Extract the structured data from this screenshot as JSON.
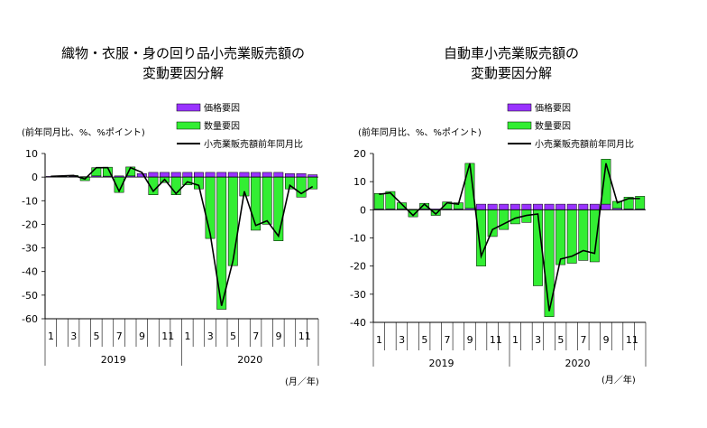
{
  "chart_data": [
    {
      "type": "bar",
      "title": "織物・衣服・身の回り品小売業販売額の",
      "subtitle": "変動要因分解",
      "ylabel": "(前年同月比、%、%ポイント)",
      "xlabel": "(月／年)",
      "ylim": [
        -60,
        10
      ],
      "yticks": [
        10,
        0,
        -10,
        -20,
        -30,
        -40,
        -50,
        -60
      ],
      "x_tick_labels": [
        "1",
        "",
        "3",
        "",
        "5",
        "",
        "7",
        "",
        "9",
        "",
        "11",
        "",
        "1",
        "",
        "3",
        "",
        "5",
        "",
        "7",
        "",
        "9",
        "",
        "11",
        ""
      ],
      "years": [
        "2019",
        "2020"
      ],
      "legend": {
        "price": "価格要因",
        "quantity": "数量要因",
        "line": "小売業販売額前年同月比"
      },
      "series": [
        {
          "name": "価格要因",
          "values": [
            0.3,
            0.2,
            0.3,
            0.2,
            0.5,
            0.4,
            0.5,
            0.5,
            1.5,
            2,
            2,
            2,
            2,
            2,
            2,
            2,
            2,
            2,
            2,
            2,
            2,
            1.5,
            1.5,
            1
          ]
        },
        {
          "name": "数量要因",
          "values": [
            0,
            0.3,
            0.4,
            -1.5,
            3.5,
            3.8,
            -6.5,
            3.8,
            0,
            -7.5,
            -2.3,
            -7.5,
            -3.3,
            -5,
            -26,
            -56,
            -37.5,
            -8,
            -22.5,
            -20,
            -27,
            -5,
            -8.5,
            -5
          ]
        },
        {
          "name": "小売業販売額前年同月比",
          "values": [
            0.3,
            0.5,
            0.7,
            -0.8,
            4,
            4,
            -6,
            4,
            2,
            -6,
            -1,
            -7,
            -2,
            -3.5,
            -24,
            -54.5,
            -35.5,
            -6,
            -20.5,
            -18.5,
            -25,
            -3.5,
            -7,
            -4
          ]
        }
      ],
      "colors": {
        "price": "#9933ff",
        "quantity": "#33ee33",
        "line": "#000000"
      }
    },
    {
      "type": "bar",
      "title": "自動車小売業販売額の",
      "subtitle": "変動要因分解",
      "ylabel": "(前年同月比、%、%ポイント)",
      "xlabel": "(月／年)",
      "ylim": [
        -40,
        20
      ],
      "yticks": [
        20,
        10,
        0,
        -10,
        -20,
        -30,
        -40
      ],
      "x_tick_labels": [
        "1",
        "",
        "3",
        "",
        "5",
        "",
        "7",
        "",
        "9",
        "",
        "11",
        "",
        "1",
        "",
        "3",
        "",
        "5",
        "",
        "7",
        "",
        "9",
        "",
        "11",
        ""
      ],
      "years": [
        "2019",
        "2020"
      ],
      "legend": {
        "price": "価格要因",
        "quantity": "数量要因",
        "line": "小売業販売額前年同月比"
      },
      "series": [
        {
          "name": "価格要因",
          "values": [
            0.3,
            0.3,
            0.3,
            0.2,
            0.3,
            0.3,
            0.3,
            0.3,
            0.5,
            2,
            2,
            2,
            2,
            2,
            2,
            2,
            2,
            2,
            2,
            2,
            2,
            0.5,
            0.3,
            0.3
          ]
        },
        {
          "name": "数量要因",
          "values": [
            5.5,
            6.2,
            2.2,
            -2.5,
            2,
            -2,
            2.5,
            2.2,
            16,
            -20,
            -9.5,
            -7,
            -5,
            -4.5,
            -27,
            -38,
            -19.5,
            -19,
            -18,
            -18.5,
            16,
            2.5,
            4.2,
            4.5
          ]
        },
        {
          "name": "小売業販売額前年同月比",
          "values": [
            5.5,
            6,
            2,
            -2,
            2,
            -1.5,
            2.5,
            2,
            16.5,
            -16.5,
            -7,
            -5,
            -3,
            -2,
            -1.5,
            -36,
            -17.5,
            -16.5,
            -14.5,
            -15.5,
            16.5,
            2.5,
            4,
            4
          ]
        }
      ],
      "colors": {
        "price": "#9933ff",
        "quantity": "#33ee33",
        "line": "#000000"
      }
    }
  ]
}
